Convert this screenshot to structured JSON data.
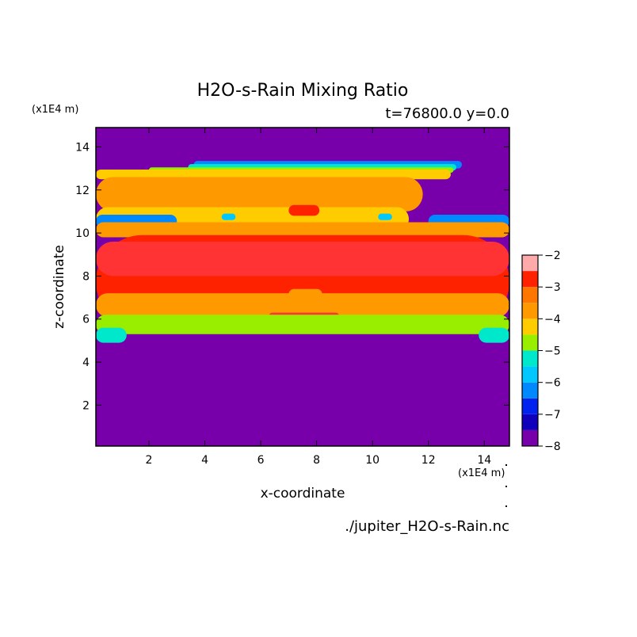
{
  "chart_data": {
    "type": "heatmap",
    "title": "H2O-s-Rain Mixing Ratio",
    "subtitle": "t=76800.0 y=0.0",
    "xlabel": "x-coordinate",
    "ylabel": "z-coordinate",
    "x_unit": "(x1E4 m)",
    "y_unit": "(x1E4 m)",
    "source_file": "./jupiter_H2O-s-Rain.nc",
    "xlim": [
      0.1,
      14.9
    ],
    "ylim": [
      0.1,
      14.9
    ],
    "x_ticks": [
      2,
      4,
      6,
      8,
      10,
      12,
      14
    ],
    "y_ticks": [
      2,
      4,
      6,
      8,
      10,
      12,
      14
    ],
    "colorbar": {
      "range": [
        -8,
        -2
      ],
      "ticks": [
        -2,
        -3,
        -4,
        -5,
        -6,
        -7,
        -8
      ],
      "levels": [
        {
          "from": -8.0,
          "to": -7.5,
          "color": "#7700aa"
        },
        {
          "from": -7.5,
          "to": -7.0,
          "color": "#1100bb"
        },
        {
          "from": -7.0,
          "to": -6.5,
          "color": "#0022ee"
        },
        {
          "from": -6.5,
          "to": -6.0,
          "color": "#0088ff"
        },
        {
          "from": -6.0,
          "to": -5.5,
          "color": "#00c8ff"
        },
        {
          "from": -5.5,
          "to": -5.0,
          "color": "#00e8cc"
        },
        {
          "from": -5.0,
          "to": -4.5,
          "color": "#99ee00"
        },
        {
          "from": -4.5,
          "to": -4.0,
          "color": "#ffcc00"
        },
        {
          "from": -4.0,
          "to": -3.5,
          "color": "#ff9900"
        },
        {
          "from": -3.5,
          "to": -3.0,
          "color": "#ff7700"
        },
        {
          "from": -3.0,
          "to": -2.5,
          "color": "#ff2200"
        },
        {
          "from": -2.5,
          "to": -2.0,
          "color": "#ff3333"
        },
        {
          "from": -2.0,
          "to": -1.5,
          "color": "#ffaaaa"
        }
      ]
    },
    "field": [
      {
        "name": "background",
        "level": -8,
        "shape": "fill"
      },
      {
        "name": "upper-fringe-blue",
        "level": -6.5,
        "x": [
          3.6,
          13.2
        ],
        "z": [
          13.0,
          13.35
        ]
      },
      {
        "name": "upper-fringe-cyan",
        "level": -5.5,
        "x": [
          3.4,
          13.0
        ],
        "z": [
          12.9,
          13.2
        ]
      },
      {
        "name": "upper-fringe-green",
        "level": -5,
        "x": [
          2.0,
          12.9
        ],
        "z": [
          12.8,
          13.05
        ]
      },
      {
        "name": "upper-yellow",
        "level": -4.5,
        "x": [
          0.1,
          12.8
        ],
        "z": [
          12.5,
          12.95
        ]
      },
      {
        "name": "upper-orange-band",
        "level": -4,
        "x": [
          0.1,
          11.8
        ],
        "z": [
          11.0,
          12.6
        ]
      },
      {
        "name": "mid-yellow-band",
        "level": -4.5,
        "x": [
          0.1,
          11.3
        ],
        "z": [
          10.1,
          11.2
        ]
      },
      {
        "name": "left-pocket-blue",
        "level": -6.5,
        "x": [
          0.1,
          3.0
        ],
        "z": [
          10.25,
          10.85
        ]
      },
      {
        "name": "right-pocket-blue",
        "level": -6.5,
        "x": [
          12.0,
          14.9
        ],
        "z": [
          10.25,
          10.85
        ]
      },
      {
        "name": "left-eye-blue",
        "level": -6,
        "x": [
          4.6,
          5.1
        ],
        "z": [
          10.6,
          10.9
        ]
      },
      {
        "name": "right-eye-blue",
        "level": -6,
        "x": [
          10.2,
          10.7
        ],
        "z": [
          10.6,
          10.9
        ]
      },
      {
        "name": "top-red-spot",
        "level": -3,
        "x": [
          7.0,
          8.1
        ],
        "z": [
          10.8,
          11.3
        ]
      },
      {
        "name": "middle-orange-band",
        "level": -4,
        "x": [
          0.1,
          14.9
        ],
        "z": [
          9.8,
          10.5
        ]
      },
      {
        "name": "red-main-band",
        "level": -3,
        "x": [
          0.1,
          14.9
        ],
        "z": [
          5.6,
          9.9
        ]
      },
      {
        "name": "core",
        "level": -2.5,
        "x": [
          0.1,
          14.9
        ],
        "z": [
          8.0,
          9.6
        ]
      },
      {
        "name": "lower-orange-lobes",
        "level": -4,
        "x": [
          0.1,
          14.9
        ],
        "z": [
          6.1,
          7.2
        ]
      },
      {
        "name": "center-orange-spot",
        "level": -4,
        "x": [
          7.0,
          8.2
        ],
        "z": [
          6.9,
          7.4
        ]
      },
      {
        "name": "center-core-spot",
        "level": -2.5,
        "x": [
          6.3,
          8.8
        ],
        "z": [
          6.0,
          6.3
        ]
      },
      {
        "name": "lower-fringe",
        "level": -5,
        "x": [
          0.1,
          14.9
        ],
        "z": [
          5.3,
          6.2
        ]
      },
      {
        "name": "left-lower-blob",
        "level": -5.5,
        "x": [
          0.1,
          1.2
        ],
        "z": [
          4.9,
          5.6
        ]
      },
      {
        "name": "right-lower-blob",
        "level": -5.5,
        "x": [
          13.8,
          14.9
        ],
        "z": [
          4.9,
          5.6
        ]
      }
    ]
  }
}
